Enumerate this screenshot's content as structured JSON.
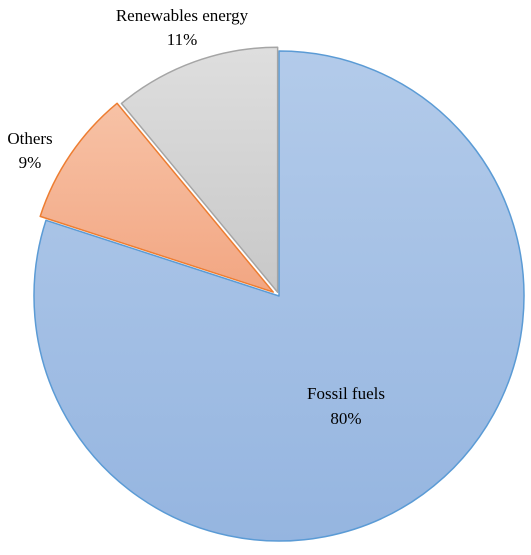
{
  "chart_data": {
    "type": "pie",
    "slices": [
      {
        "label": "Fossil fuels",
        "value": 80,
        "value_label": "80%",
        "fill": "#a9c3e6",
        "stroke": "#5b9bd5"
      },
      {
        "label": "Others",
        "value": 9,
        "value_label": "9%",
        "fill": "#f4b89a",
        "stroke": "#ed7d31"
      },
      {
        "label": "Renewables energy",
        "value": 11,
        "value_label": "11%",
        "fill": "#d3d3d3",
        "stroke": "#a5a5a5"
      }
    ],
    "start_angle_deg": 0,
    "direction": "clockwise",
    "exploded": true,
    "legend": "none"
  }
}
